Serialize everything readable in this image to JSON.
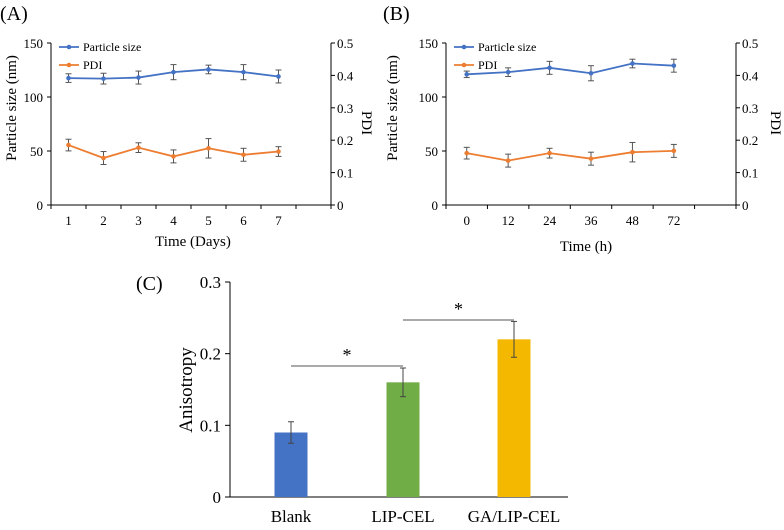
{
  "chart_data": [
    {
      "panel": "(A)",
      "type": "line",
      "xlabel": "Time  (Days)",
      "ylabel": "Particle size (nm)",
      "y2label": "PDI",
      "x_ticks": [
        "1",
        "2",
        "3",
        "4",
        "5",
        "6",
        "7"
      ],
      "ylim": [
        0,
        150
      ],
      "y_ticks": [
        "0",
        "50",
        "100",
        "150"
      ],
      "y2lim": [
        0,
        0.5
      ],
      "y2_ticks": [
        "0",
        "0.1",
        "0.2",
        "0.3",
        "0.4",
        "0.5"
      ],
      "legend": "top-left",
      "series": [
        {
          "name": "Particle size",
          "axis": "left",
          "color": "#4472C4",
          "x": [
            1,
            2,
            3,
            4,
            5,
            6,
            7
          ],
          "values": [
            117.5,
            117,
            118,
            123,
            125.5,
            123,
            119
          ],
          "errors": [
            4,
            5,
            6,
            7,
            4,
            7,
            6
          ]
        },
        {
          "name": "PDI",
          "axis": "right",
          "color": "#ED7D31",
          "x": [
            1,
            2,
            3,
            4,
            5,
            6,
            7
          ],
          "values": [
            0.185,
            0.145,
            0.177,
            0.15,
            0.175,
            0.155,
            0.165
          ],
          "errors": [
            0.018,
            0.02,
            0.015,
            0.02,
            0.03,
            0.02,
            0.015
          ]
        }
      ]
    },
    {
      "panel": "(B)",
      "type": "line",
      "xlabel": "Time  (h)",
      "ylabel": "Particle size (nm)",
      "y2label": "PDI",
      "x_ticks": [
        "0",
        "12",
        "24",
        "36",
        "48",
        "72"
      ],
      "ylim": [
        0,
        150
      ],
      "y_ticks": [
        "0",
        "50",
        "100",
        "150"
      ],
      "y2lim": [
        0,
        0.5
      ],
      "y2_ticks": [
        "0",
        "0.1",
        "0.2",
        "0.3",
        "0.4",
        "0.5"
      ],
      "legend": "top-left",
      "series": [
        {
          "name": "Particle size",
          "axis": "left",
          "color": "#4472C4",
          "x": [
            0,
            12,
            24,
            36,
            48,
            72
          ],
          "values": [
            121,
            123,
            127,
            122,
            131,
            129
          ],
          "errors": [
            3,
            4,
            6,
            7,
            4,
            6
          ]
        },
        {
          "name": "PDI",
          "axis": "right",
          "color": "#ED7D31",
          "x": [
            0,
            12,
            24,
            36,
            48,
            72
          ],
          "values": [
            0.16,
            0.137,
            0.16,
            0.143,
            0.163,
            0.167
          ],
          "errors": [
            0.018,
            0.02,
            0.015,
            0.02,
            0.03,
            0.02
          ]
        }
      ]
    },
    {
      "panel": "(C)",
      "type": "bar",
      "categories": [
        "Blank",
        "LIP-CEL",
        "GA/LIP-CEL"
      ],
      "values": [
        0.09,
        0.16,
        0.22
      ],
      "errors": [
        0.015,
        0.02,
        0.025
      ],
      "colors": [
        "#4472C4",
        "#70AD47",
        "#F5B800"
      ],
      "ylabel": "Anisotropy",
      "xlabel": "",
      "ylim": [
        0,
        0.3
      ],
      "y_ticks": [
        "0",
        "0.1",
        "0.2",
        "0.3"
      ],
      "annotations": [
        {
          "text": "*",
          "from": "Blank",
          "to": "LIP-CEL"
        },
        {
          "text": "*",
          "from": "LIP-CEL",
          "to": "GA/LIP-CEL"
        }
      ]
    }
  ]
}
